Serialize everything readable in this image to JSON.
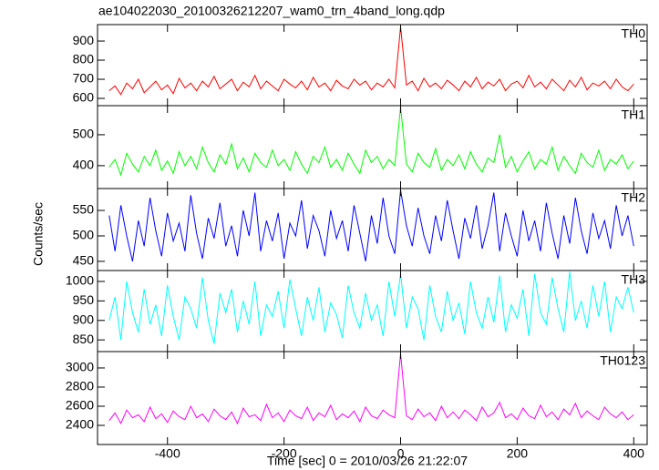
{
  "title": "ae104022030_20100326212207_wam0_trn_4band_long.qdp",
  "xlabel": "Time [sec] 0 = 2010/03/26 21:22:07",
  "ylabel": "Counts/sec",
  "xlim": [
    -520,
    423
  ],
  "xticks": [
    -400,
    -200,
    0,
    200,
    400
  ],
  "x": [
    -500,
    -490,
    -480,
    -470,
    -460,
    -450,
    -440,
    -430,
    -420,
    -410,
    -400,
    -390,
    -380,
    -370,
    -360,
    -350,
    -340,
    -330,
    -320,
    -310,
    -300,
    -290,
    -280,
    -270,
    -260,
    -250,
    -240,
    -230,
    -220,
    -210,
    -200,
    -190,
    -180,
    -170,
    -160,
    -150,
    -140,
    -130,
    -120,
    -110,
    -100,
    -90,
    -80,
    -70,
    -60,
    -50,
    -40,
    -30,
    -20,
    -10,
    0,
    10,
    20,
    30,
    40,
    50,
    60,
    70,
    80,
    90,
    100,
    110,
    120,
    130,
    140,
    150,
    160,
    170,
    180,
    190,
    200,
    210,
    220,
    230,
    240,
    250,
    260,
    270,
    280,
    290,
    300,
    310,
    320,
    330,
    340,
    350,
    360,
    370,
    380,
    390,
    400
  ],
  "chart_data": [
    {
      "type": "line",
      "label": "TH0",
      "ylim": [
        562,
        986
      ],
      "yticks": [
        600,
        700,
        800,
        900
      ],
      "series": [
        {
          "color": "#ff0000",
          "values": [
            640,
            665,
            620,
            680,
            650,
            700,
            630,
            660,
            690,
            645,
            670,
            625,
            705,
            655,
            680,
            640,
            690,
            660,
            715,
            650,
            675,
            700,
            640,
            685,
            660,
            720,
            650,
            690,
            665,
            640,
            700,
            675,
            655,
            690,
            645,
            710,
            660,
            680,
            640,
            695,
            665,
            650,
            700,
            670,
            690,
            645,
            680,
            660,
            700,
            655,
            975,
            670,
            690,
            640,
            705,
            660,
            680,
            650,
            695,
            670,
            640,
            690,
            660,
            710,
            650,
            685,
            665,
            700,
            640,
            675,
            690,
            655,
            720,
            660,
            685,
            650,
            700,
            670,
            640,
            695,
            660,
            710,
            645,
            680,
            665,
            690,
            650,
            700,
            660,
            640,
            675
          ]
        }
      ]
    },
    {
      "type": "line",
      "label": "TH1",
      "ylim": [
        326,
        594
      ],
      "yticks": [
        400,
        500
      ],
      "series": [
        {
          "color": "#00ff00",
          "values": [
            395,
            420,
            370,
            440,
            405,
            380,
            430,
            400,
            450,
            385,
            415,
            375,
            445,
            400,
            430,
            390,
            460,
            410,
            380,
            435,
            405,
            470,
            390,
            425,
            380,
            440,
            410,
            395,
            450,
            400,
            420,
            385,
            445,
            405,
            375,
            430,
            410,
            460,
            395,
            420,
            385,
            440,
            405,
            375,
            450,
            410,
            430,
            390,
            420,
            400,
            590,
            405,
            380,
            440,
            410,
            395,
            455,
            385,
            420,
            400,
            435,
            390,
            445,
            405,
            380,
            425,
            410,
            500,
            395,
            430,
            380,
            415,
            445,
            390,
            420,
            405,
            460,
            385,
            430,
            400,
            375,
            440,
            410,
            395,
            450,
            385,
            420,
            405,
            435,
            390,
            415
          ]
        }
      ]
    },
    {
      "type": "line",
      "label": "TH2",
      "ylim": [
        432,
        593
      ],
      "yticks": [
        450,
        500,
        550
      ],
      "series": [
        {
          "color": "#0000ff",
          "values": [
            540,
            470,
            560,
            500,
            450,
            530,
            480,
            575,
            510,
            460,
            545,
            490,
            525,
            470,
            580,
            505,
            455,
            535,
            495,
            565,
            480,
            520,
            460,
            550,
            500,
            585,
            470,
            530,
            490,
            545,
            455,
            525,
            500,
            570,
            475,
            540,
            510,
            460,
            550,
            495,
            530,
            470,
            560,
            505,
            450,
            540,
            485,
            575,
            500,
            465,
            590,
            520,
            480,
            555,
            500,
            465,
            540,
            490,
            570,
            510,
            455,
            535,
            495,
            560,
            475,
            520,
            585,
            470,
            545,
            500,
            460,
            550,
            490,
            530,
            470,
            565,
            505,
            455,
            540,
            485,
            575,
            510,
            465,
            545,
            495,
            530,
            475,
            560,
            500,
            540,
            480
          ]
        }
      ]
    },
    {
      "type": "line",
      "label": "TH3",
      "ylim": [
        820,
        1028
      ],
      "yticks": [
        850,
        900,
        950,
        1000
      ],
      "series": [
        {
          "color": "#00ffff",
          "values": [
            900,
            960,
            850,
            1000,
            920,
            870,
            980,
            890,
            940,
            860,
            990,
            910,
            850,
            960,
            930,
            880,
            1010,
            900,
            840,
            970,
            920,
            980,
            870,
            950,
            890,
            1000,
            860,
            940,
            910,
            975,
            880,
            1005,
            930,
            860,
            960,
            900,
            985,
            870,
            945,
            915,
            855,
            990,
            920,
            880,
            970,
            900,
            940,
            860,
            1000,
            910,
            1020,
            880,
            960,
            930,
            850,
            990,
            910,
            870,
            975,
            900,
            945,
            865,
            1000,
            920,
            880,
            960,
            895,
            1015,
            870,
            940,
            905,
            980,
            860,
            1020,
            920,
            890,
            1010,
            930,
            870,
            1025,
            900,
            950,
            880,
            990,
            910,
            1000,
            870,
            960,
            930,
            985,
            920
          ]
        }
      ]
    },
    {
      "type": "line",
      "label": "TH0123",
      "ylim": [
        2200,
        3171
      ],
      "yticks": [
        2400,
        2600,
        2800,
        3000
      ],
      "series": [
        {
          "color": "#ff00ff",
          "values": [
            2450,
            2530,
            2420,
            2560,
            2480,
            2510,
            2440,
            2590,
            2470,
            2520,
            2430,
            2550,
            2490,
            2460,
            2600,
            2480,
            2520,
            2440,
            2570,
            2500,
            2460,
            2540,
            2420,
            2580,
            2490,
            2510,
            2450,
            2620,
            2480,
            2530,
            2440,
            2560,
            2500,
            2470,
            2590,
            2450,
            2530,
            2490,
            2610,
            2460,
            2520,
            2480,
            2550,
            2440,
            2590,
            2500,
            2470,
            2560,
            2510,
            2480,
            3150,
            2500,
            2460,
            2570,
            2490,
            2530,
            2450,
            2600,
            2480,
            2540,
            2470,
            2560,
            2510,
            2450,
            2590,
            2490,
            2530,
            2640,
            2480,
            2520,
            2460,
            2580,
            2500,
            2470,
            2610,
            2490,
            2540,
            2460,
            2570,
            2510,
            2630,
            2480,
            2550,
            2500,
            2460,
            2590,
            2520,
            2480,
            2540,
            2460,
            2510
          ]
        }
      ]
    }
  ]
}
